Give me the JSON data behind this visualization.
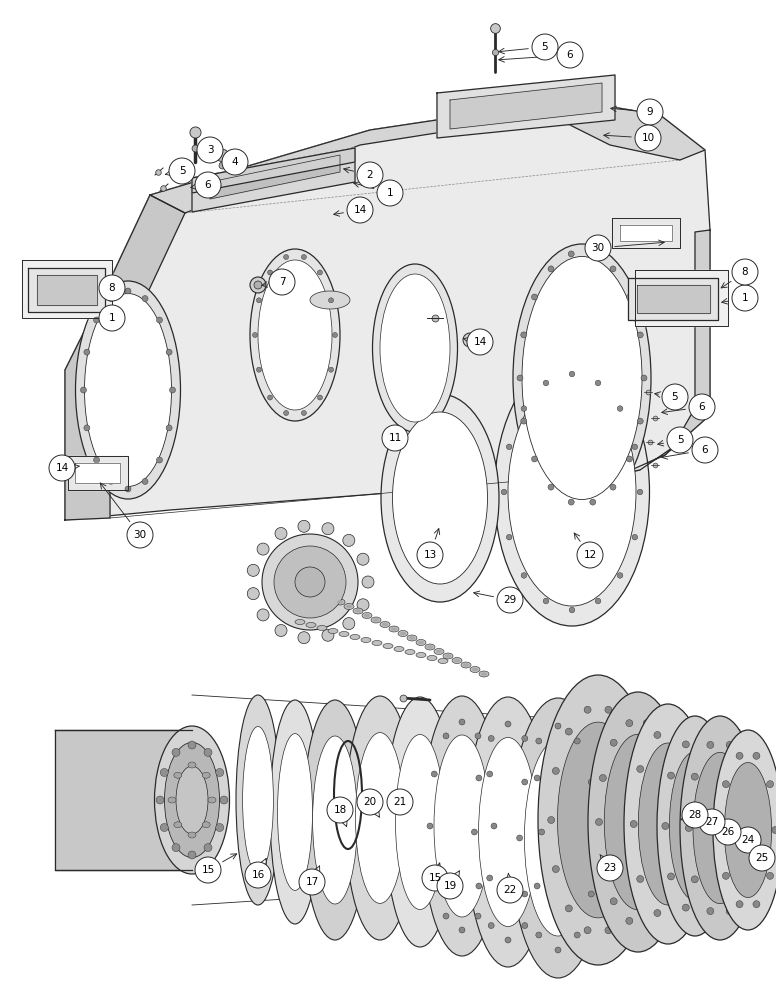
{
  "bg": "#ffffff",
  "lc": "#2a2a2a",
  "lw": 0.9,
  "fig_w": 7.76,
  "fig_h": 10.0,
  "dpi": 100
}
